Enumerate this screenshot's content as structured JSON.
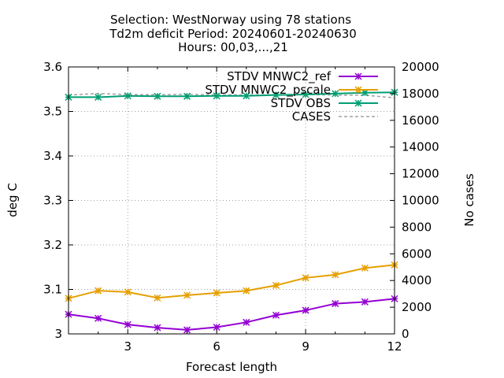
{
  "chart_data": {
    "type": "line",
    "title": [
      "Selection: WestNorway using    78 stations",
      "Td2m deficit   Period: 20240601-20240630",
      "Hours: 00,03,...,21"
    ],
    "xlabel": "Forecast length",
    "ylabel": "deg C",
    "y2label": "No cases",
    "xlim": [
      1,
      12
    ],
    "ylim": [
      3.0,
      3.6
    ],
    "y2lim": [
      0,
      20000
    ],
    "xticks": [
      3,
      6,
      9,
      12
    ],
    "yticks": [
      3.0,
      3.1,
      3.2,
      3.3,
      3.4,
      3.5,
      3.6
    ],
    "y2ticks": [
      0,
      2000,
      4000,
      6000,
      8000,
      10000,
      12000,
      14000,
      16000,
      18000,
      20000
    ],
    "grid": true,
    "legend_position": "top-right",
    "x": [
      1,
      2,
      3,
      4,
      5,
      6,
      7,
      8,
      9,
      10,
      11,
      12
    ],
    "series": [
      {
        "name": "STDV MNWC2_ref",
        "axis": "left",
        "color": "#9400d3",
        "marker": "asterisk",
        "values": [
          3.044,
          3.035,
          3.021,
          3.014,
          3.009,
          3.015,
          3.026,
          3.042,
          3.053,
          3.068,
          3.072,
          3.079
        ]
      },
      {
        "name": "STDV MNWC2_pscale",
        "axis": "left",
        "color": "#e69f00",
        "marker": "asterisk",
        "values": [
          3.08,
          3.097,
          3.094,
          3.081,
          3.087,
          3.092,
          3.097,
          3.109,
          3.126,
          3.133,
          3.148,
          3.155
        ]
      },
      {
        "name": "STDV OBS",
        "axis": "left",
        "color": "#009e73",
        "marker": "asterisk",
        "values": [
          3.532,
          3.532,
          3.535,
          3.534,
          3.534,
          3.535,
          3.535,
          3.537,
          3.538,
          3.54,
          3.542,
          3.543
        ]
      },
      {
        "name": "CASES",
        "axis": "right",
        "color": "#a0a0a0",
        "dashed": true,
        "values": [
          17890,
          18010,
          17930,
          17920,
          17950,
          17910,
          17900,
          17920,
          17940,
          17890,
          17880,
          17690
        ]
      }
    ]
  }
}
